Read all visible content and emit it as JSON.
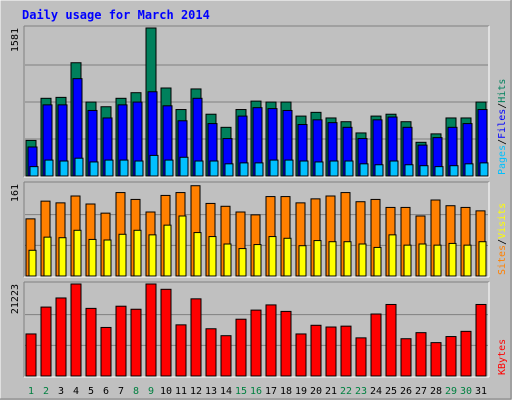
{
  "chart_data": {
    "type": "bar",
    "title": "Daily usage for March 2014",
    "colors": {
      "hits": "#00805c",
      "files": "#0000ff",
      "pages": "#00c0ff",
      "visits": "#ffff00",
      "sites": "#ff8000",
      "kbytes": "#ff0000",
      "title": "#0000ff",
      "weekend": "#008040",
      "weekday": "#000000"
    },
    "days": [
      1,
      2,
      3,
      4,
      5,
      6,
      7,
      8,
      9,
      10,
      11,
      12,
      13,
      14,
      15,
      16,
      17,
      18,
      19,
      20,
      21,
      22,
      23,
      24,
      25,
      26,
      27,
      28,
      29,
      30,
      31
    ],
    "weekend_days": [
      1,
      2,
      8,
      9,
      15,
      16,
      22,
      23,
      29,
      30
    ],
    "panels": [
      {
        "id": "hits-files-pages",
        "ylabel_max": "1581",
        "ymax": 1581,
        "legend": [
          {
            "text": "Hits",
            "color": "#00805c"
          },
          {
            "text": "Files",
            "color": "#0000ff"
          },
          {
            "text": "Pages",
            "color": "#00c0ff"
          }
        ],
        "series": [
          {
            "name": "Hits",
            "color": "#00805c",
            "values": [
              380,
              830,
              840,
              1210,
              790,
              740,
              830,
              890,
              1581,
              940,
              710,
              930,
              660,
              520,
              710,
              800,
              790,
              790,
              640,
              680,
              620,
              580,
              460,
              640,
              660,
              580,
              360,
              450,
              620,
              620,
              790
            ]
          },
          {
            "name": "Files",
            "color": "#0000ff",
            "values": [
              310,
              760,
              760,
              1040,
              700,
              620,
              760,
              790,
              900,
              750,
              590,
              830,
              560,
              400,
              640,
              730,
              720,
              700,
              550,
              600,
              570,
              520,
              400,
              600,
              630,
              520,
              330,
              410,
              520,
              560,
              710
            ]
          },
          {
            "name": "Pages",
            "color": "#00c0ff",
            "values": [
              100,
              170,
              160,
              190,
              150,
              170,
              170,
              160,
              220,
              170,
              200,
              160,
              160,
              130,
              140,
              140,
              170,
              170,
              160,
              150,
              160,
              160,
              130,
              120,
              160,
              120,
              110,
              100,
              110,
              130,
              140
            ]
          }
        ]
      },
      {
        "id": "sites-visits",
        "ylabel_max": "161",
        "ymax": 161,
        "legend": [
          {
            "text": "Visits",
            "color": "#ffff00"
          },
          {
            "text": "Sites",
            "color": "#ff8000"
          }
        ],
        "series": [
          {
            "name": "Sites",
            "color": "#ff8000",
            "values": [
              100,
              131,
              128,
              140,
              126,
              110,
              146,
              134,
              112,
              141,
              146,
              158,
              127,
              122,
              112,
              107,
              139,
              139,
              128,
              135,
              140,
              146,
              130,
              134,
              120,
              120,
              105,
              133,
              123,
              120,
              114
            ]
          },
          {
            "name": "Visits",
            "color": "#ffff00",
            "values": [
              45,
              68,
              67,
              80,
              64,
              63,
              73,
              80,
              72,
              89,
              105,
              76,
              69,
              56,
              48,
              55,
              69,
              66,
              53,
              62,
              60,
              60,
              56,
              50,
              72,
              54,
              56,
              54,
              57,
              54,
              60
            ]
          }
        ]
      },
      {
        "id": "kbytes",
        "ylabel_max": "21223",
        "ymax": 21223,
        "legend": [
          {
            "text": "KBytes",
            "color": "#ff0000"
          }
        ],
        "series": [
          {
            "name": "KBytes",
            "color": "#ff0000",
            "values": [
              9700,
              15900,
              18000,
              21223,
              15600,
              11200,
              16100,
              15400,
              21223,
              20000,
              11800,
              17800,
              10900,
              9300,
              13100,
              15200,
              16400,
              14900,
              9700,
              11700,
              11300,
              11500,
              8800,
              14300,
              16500,
              8600,
              10000,
              7700,
              9100,
              10300,
              16500
            ]
          }
        ]
      }
    ]
  }
}
